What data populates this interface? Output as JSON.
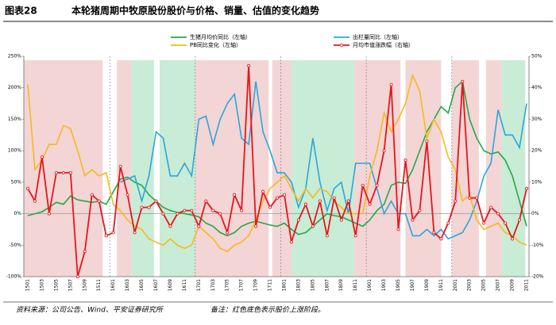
{
  "chart_data": {
    "type": "line",
    "figure_label": "图表28",
    "title": "本轮猪周期中牧原股份股价与价格、销量、估值的变化趋势",
    "source": "资料来源：公司公告、Wind、平安证券研究所",
    "note": "备注：红色底色表示股价上涨阶段。",
    "categories": [
      "1501",
      null,
      "1503",
      null,
      "1505",
      null,
      "1507",
      null,
      "1509",
      null,
      "1511",
      null,
      "1601",
      null,
      "1603",
      null,
      "1605",
      null,
      "1607",
      null,
      "1609",
      null,
      "1611",
      null,
      "1701",
      null,
      "1703",
      null,
      "1705",
      null,
      "1707",
      null,
      "1709",
      null,
      "1711",
      null,
      "1801",
      null,
      "1803",
      null,
      "1805",
      null,
      "1807",
      null,
      "1809",
      null,
      "1811",
      null,
      "1901",
      null,
      "1903",
      null,
      "1905",
      null,
      "1907",
      null,
      "1909",
      null,
      "1911",
      null,
      "2001",
      null,
      "2003",
      null,
      "2005",
      null,
      "2007",
      null,
      "2009",
      null,
      "2011"
    ],
    "series": [
      {
        "name": "生猪月均价同比（左轴）",
        "color": "#22a94a",
        "marker": false,
        "values": [
          -3,
          0,
          3,
          10,
          18,
          15,
          28,
          22,
          20,
          18,
          20,
          15,
          35,
          55,
          58,
          50,
          45,
          30,
          20,
          10,
          5,
          2,
          0,
          -2,
          -5,
          -15,
          -20,
          -30,
          -35,
          -30,
          -20,
          -15,
          -12,
          -15,
          -18,
          -20,
          -15,
          -25,
          -33,
          -30,
          -20,
          -10,
          0,
          -3,
          -5,
          -10,
          -15,
          -20,
          -10,
          5,
          15,
          45,
          50,
          48,
          70,
          100,
          130,
          150,
          170,
          160,
          200,
          210,
          150,
          120,
          100,
          95,
          98,
          85,
          60,
          20,
          -20
        ]
      },
      {
        "name": "出栏量同比（左轴）",
        "color": "#2aa6dc",
        "marker": false,
        "values": [
          null,
          null,
          null,
          null,
          null,
          null,
          null,
          null,
          null,
          null,
          null,
          null,
          null,
          50,
          55,
          60,
          20,
          60,
          130,
          120,
          60,
          60,
          80,
          60,
          150,
          155,
          110,
          150,
          175,
          190,
          120,
          110,
          210,
          130,
          100,
          65,
          65,
          50,
          10,
          40,
          120,
          50,
          5,
          40,
          50,
          0,
          80,
          80,
          80,
          40,
          0,
          20,
          0,
          0,
          -35,
          -35,
          -25,
          -35,
          -25,
          -40,
          -35,
          -30,
          -10,
          20,
          60,
          80,
          165,
          125,
          125,
          105,
          175
        ]
      },
      {
        "name": "PB同比变化（左轴）",
        "color": "#f5b921",
        "marker": false,
        "values": [
          205,
          70,
          85,
          110,
          110,
          140,
          135,
          100,
          60,
          70,
          60,
          65,
          15,
          5,
          -10,
          -20,
          -25,
          -40,
          -45,
          -50,
          -40,
          -50,
          -55,
          -50,
          -20,
          -30,
          -40,
          -55,
          -60,
          -50,
          -45,
          -35,
          -10,
          20,
          40,
          50,
          60,
          40,
          20,
          40,
          25,
          40,
          35,
          20,
          10,
          0,
          0,
          0,
          60,
          100,
          160,
          130,
          150,
          175,
          220,
          195,
          120,
          150,
          130,
          90,
          70,
          20,
          30,
          -10,
          -25,
          -20,
          -15,
          -30,
          -35,
          -45,
          -50
        ]
      },
      {
        "name": "月均市值涨跌幅（右轴）",
        "color": "#e8141b",
        "marker": true,
        "axis": "y2",
        "values": [
          8,
          4,
          18,
          0,
          13,
          13,
          13,
          -20,
          -12,
          6,
          4,
          -7,
          -6,
          15,
          6,
          -6,
          2,
          2,
          4,
          0,
          -4,
          0,
          1,
          1,
          -4,
          4,
          1,
          0,
          -6,
          6,
          1,
          47,
          -4,
          7,
          2,
          5,
          6,
          -9,
          -2,
          3,
          -4,
          4,
          -7,
          5,
          -2,
          4,
          -7,
          9,
          3,
          9,
          20,
          41,
          -5,
          17,
          -2,
          1,
          23,
          -6,
          -8,
          -3,
          4,
          42,
          5,
          5,
          -3,
          2,
          0,
          -3,
          -8,
          -2,
          8
        ]
      }
    ],
    "ylim": [
      -100,
      250
    ],
    "yticks": [
      {
        "value": -100,
        "label": "-100%"
      },
      {
        "value": -50,
        "label": "-50%"
      },
      {
        "value": 0,
        "label": "0%"
      },
      {
        "value": 50,
        "label": "50%"
      },
      {
        "value": 100,
        "label": "100%"
      },
      {
        "value": 150,
        "label": "150%"
      },
      {
        "value": 200,
        "label": "200%"
      },
      {
        "value": 250,
        "label": "250%"
      }
    ],
    "y2lim": [
      -20,
      50
    ],
    "y2ticks": [
      {
        "value": -20,
        "label": "-20%"
      },
      {
        "value": -10,
        "label": "-10%"
      },
      {
        "value": 0,
        "label": "0%"
      },
      {
        "value": 10,
        "label": "10%"
      },
      {
        "value": 20,
        "label": "20%"
      },
      {
        "value": 30,
        "label": "30%"
      },
      {
        "value": 40,
        "label": "40%"
      },
      {
        "value": 50,
        "label": "50%"
      }
    ]
  }
}
